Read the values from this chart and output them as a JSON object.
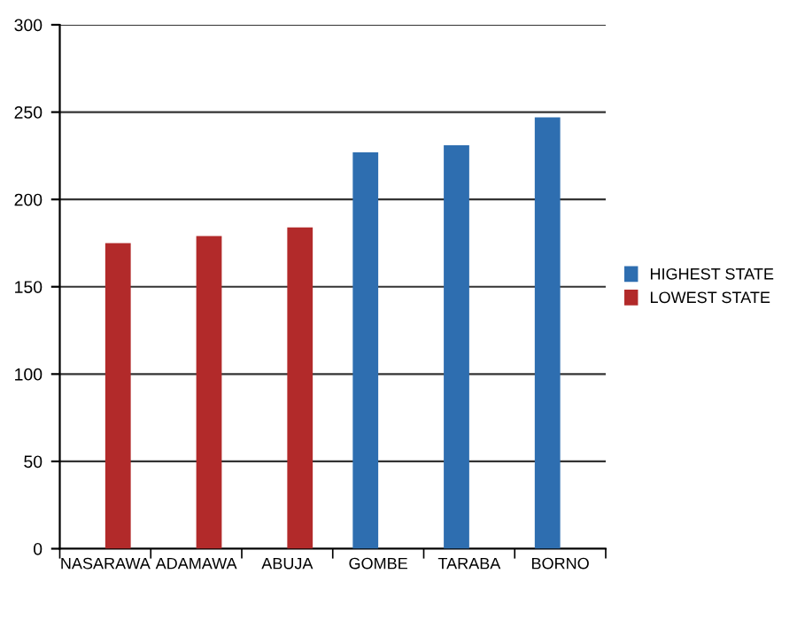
{
  "chart_data": {
    "type": "bar",
    "categories": [
      "NASARAWA",
      "ADAMAWA",
      "ABUJA",
      "GOMBE",
      "TARABA",
      "BORNO"
    ],
    "series": [
      {
        "name": "HIGHEST STATE",
        "color": "#2e6eb0",
        "values": [
          null,
          null,
          null,
          227,
          231,
          247
        ]
      },
      {
        "name": "LOWEST STATE",
        "color": "#b22a2a",
        "values": [
          175,
          179,
          184,
          null,
          null,
          null
        ]
      }
    ],
    "ylim": [
      0,
      300
    ],
    "yticks": [
      0,
      50,
      100,
      150,
      200,
      250,
      300
    ],
    "grid": "y",
    "legend": "right"
  }
}
